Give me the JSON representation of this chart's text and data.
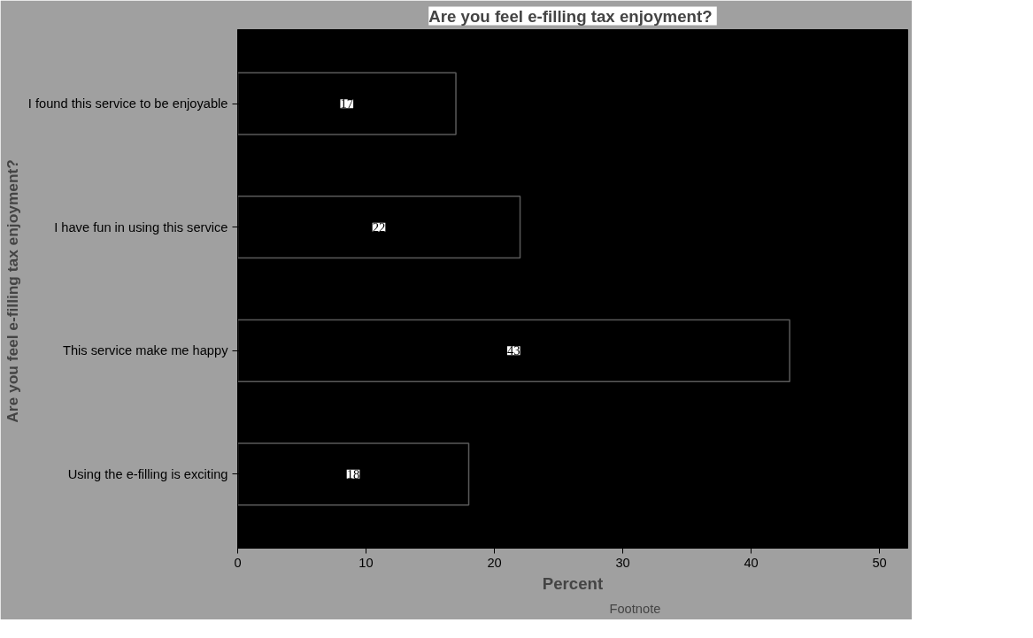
{
  "chart_data": {
    "type": "bar",
    "orientation": "horizontal",
    "title": "Are you feel e-filling tax  enjoyment?",
    "xlabel": "Percent",
    "ylabel": "Are you feel e-filling tax  enjoyment?",
    "categories": [
      "I found this service to be enjoyable",
      "I have fun in using this service",
      "This service make me happy",
      "Using the e-filling is exciting"
    ],
    "values": [
      17,
      22,
      43,
      18
    ],
    "color": "#000000",
    "data_labels": true,
    "xlim": [
      0,
      52.2
    ],
    "xticks": [
      0,
      10,
      20,
      30,
      40,
      50
    ],
    "grid": false,
    "annotations": [
      "Footnote"
    ]
  }
}
